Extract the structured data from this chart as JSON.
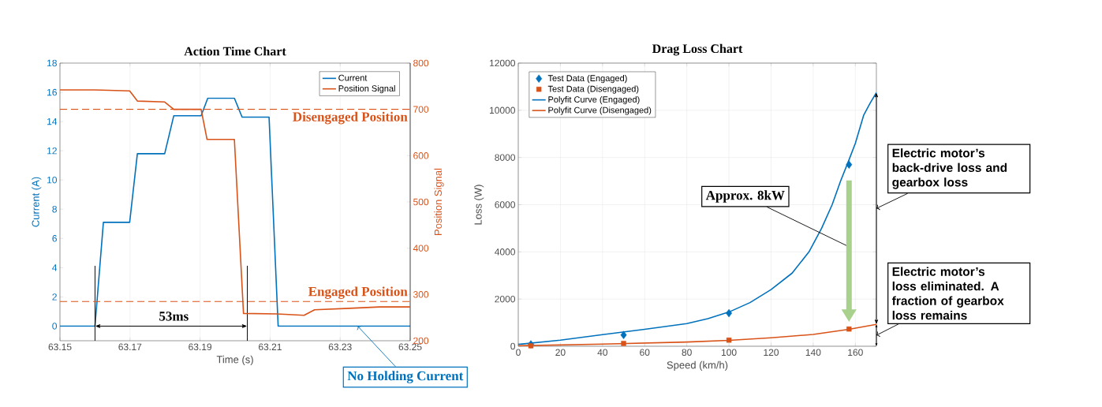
{
  "chart_data": [
    {
      "type": "line",
      "title": "Action Time Chart",
      "xlabel": "Time (s)",
      "ylabel": "Current (A)",
      "y2label": "Position Signal",
      "xlim": [
        63.15,
        63.25
      ],
      "xticks": [
        63.15,
        63.17,
        63.19,
        63.21,
        63.23,
        63.25
      ],
      "ylim": [
        -1,
        18
      ],
      "yticks": [
        0,
        2,
        4,
        6,
        8,
        10,
        12,
        14,
        16,
        18
      ],
      "y2lim": [
        200,
        800
      ],
      "y2ticks": [
        200,
        300,
        400,
        500,
        600,
        700,
        800
      ],
      "grid": "x",
      "legend": "top right",
      "series": [
        {
          "name": "Current",
          "color": "#0072bd",
          "x": [
            63.15,
            63.16,
            63.1624,
            63.1699,
            63.1721,
            63.1799,
            63.1825,
            63.1903,
            63.1922,
            63.1998,
            63.202,
            63.2097,
            63.2123,
            63.25
          ],
          "values": [
            0,
            0,
            7.1,
            7.1,
            11.8,
            11.8,
            14.4,
            14.4,
            15.6,
            15.6,
            14.3,
            14.3,
            0,
            0
          ]
        },
        {
          "name": "Position Signal",
          "color": "#d95319",
          "axis": "y2",
          "x": [
            63.15,
            63.16,
            63.1699,
            63.1721,
            63.1799,
            63.1825,
            63.1903,
            63.192,
            63.1998,
            63.2024,
            63.212,
            63.2197,
            63.2227,
            63.2327,
            63.2413,
            63.25
          ],
          "values": [
            742,
            742,
            740,
            718,
            716,
            700,
            700,
            635,
            635,
            259,
            258,
            255,
            267,
            270,
            273,
            273
          ]
        }
      ],
      "ref_lines": [
        {
          "axis": "y2",
          "value": 700,
          "label": "Disengaged Position",
          "color": "#d95319",
          "line_style": "dashed"
        },
        {
          "axis": "y2",
          "value": 285,
          "label": "Engaged Position",
          "color": "#d95319",
          "line_style": "dashed"
        },
        {
          "axis": "x",
          "value": 63.16,
          "color": "#000000",
          "line_style": "solid"
        },
        {
          "axis": "x",
          "value": 63.2035,
          "color": "#000000",
          "line_style": "solid"
        }
      ],
      "annotations": [
        "53ms",
        {
          "text": "No Holding Current",
          "x": 63.235,
          "y": 0
        }
      ]
    },
    {
      "type": "line",
      "title": "Drag Loss Chart",
      "xlabel": "Speed (km/h)",
      "ylabel": "Loss (W)",
      "xlim": [
        0,
        170
      ],
      "xticks": [
        0,
        20,
        40,
        60,
        80,
        100,
        120,
        140,
        160
      ],
      "ylim": [
        0,
        12000
      ],
      "yticks": [
        0,
        2000,
        4000,
        6000,
        8000,
        10000,
        12000
      ],
      "grid": true,
      "legend": "top left",
      "series": [
        {
          "name": "Test Data (Engaged)",
          "type": "scatter",
          "marker": "diamond",
          "color": "#0072bd",
          "x": [
            6,
            50,
            100,
            157
          ],
          "values": [
            80,
            480,
            1400,
            7700
          ]
        },
        {
          "name": "Test Data (Disengaged)",
          "type": "scatter",
          "marker": "square",
          "color": "#d95319",
          "x": [
            6,
            50,
            100,
            157
          ],
          "values": [
            20,
            120,
            260,
            730
          ]
        },
        {
          "name": "Polyfit Curve (Engaged)",
          "color": "#0072bd",
          "x": [
            0,
            20,
            40,
            60,
            80,
            90,
            100,
            110,
            120,
            130,
            138,
            144,
            149,
            153,
            157,
            160,
            164,
            167,
            170
          ],
          "values": [
            80,
            260,
            490,
            720,
            960,
            1170,
            1450,
            1850,
            2400,
            3100,
            4000,
            5000,
            6000,
            7000,
            7900,
            8600,
            9800,
            10300,
            10750
          ]
        },
        {
          "name": "Polyfit Curve (Disengaged)",
          "color": "#d95319",
          "x": [
            0,
            40,
            80,
            100,
            120,
            140,
            157,
            170
          ],
          "values": [
            20,
            90,
            180,
            250,
            360,
            500,
            720,
            930
          ]
        }
      ],
      "annotations": [
        "Approx. 8kW",
        "Electric motor’s back-drive loss and gearbox loss",
        "Electric motor’s loss eliminated. A fraction of gearbox loss remains"
      ]
    }
  ]
}
